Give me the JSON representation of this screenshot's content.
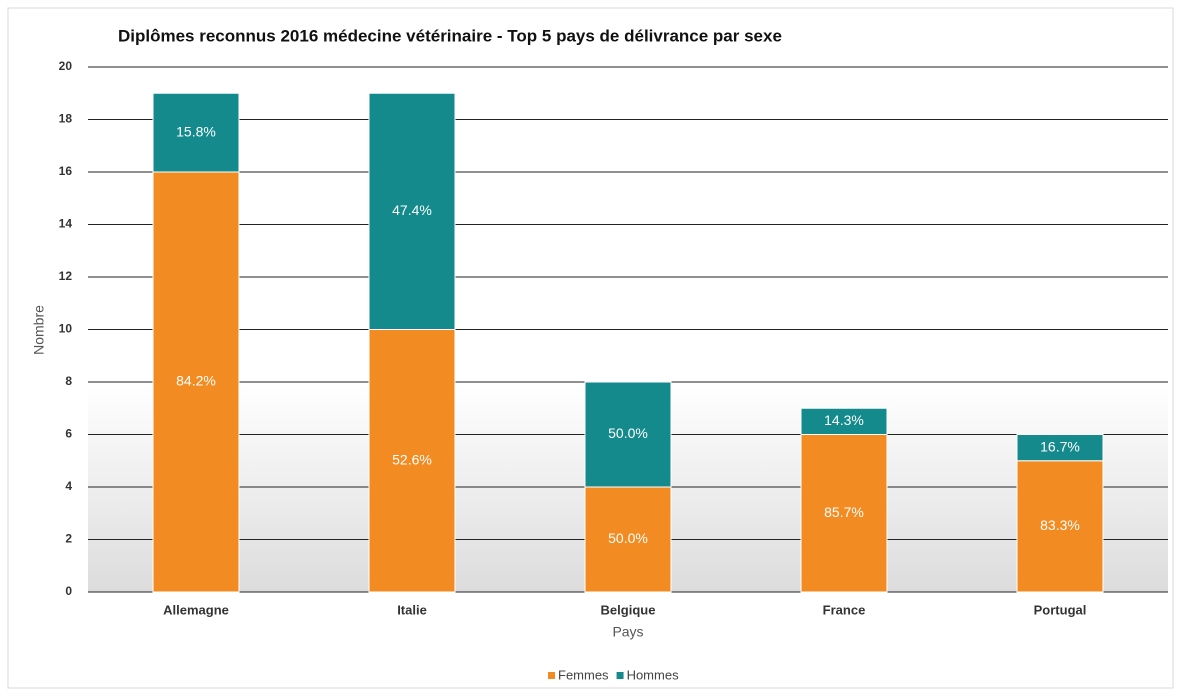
{
  "chart_data": {
    "type": "stacked_bar",
    "title": "Diplômes reconnus 2016 médecine vétérinaire - Top 5 pays de délivrance par sexe",
    "x_label": "Pays",
    "y_label": "Nombre",
    "categories": [
      "Allemagne",
      "Italie",
      "Belgique",
      "France",
      "Portugal"
    ],
    "series": [
      {
        "name": "Femmes",
        "color": "#f28c22",
        "values": [
          16,
          10,
          4,
          6,
          5
        ],
        "value_labels": [
          "84.2%",
          "52.6%",
          "50.0%",
          "85.7%",
          "83.3%"
        ]
      },
      {
        "name": "Hommes",
        "color": "#148a8c",
        "values": [
          3,
          9,
          4,
          1,
          1
        ],
        "value_labels": [
          "15.8%",
          "47.4%",
          "50.0%",
          "14.3%",
          "16.7%"
        ]
      }
    ],
    "ylim": [
      0,
      20
    ],
    "yticks": [
      0,
      2,
      4,
      6,
      8,
      10,
      12,
      14,
      16,
      18,
      20
    ],
    "grid": true,
    "legend": "bottom"
  }
}
